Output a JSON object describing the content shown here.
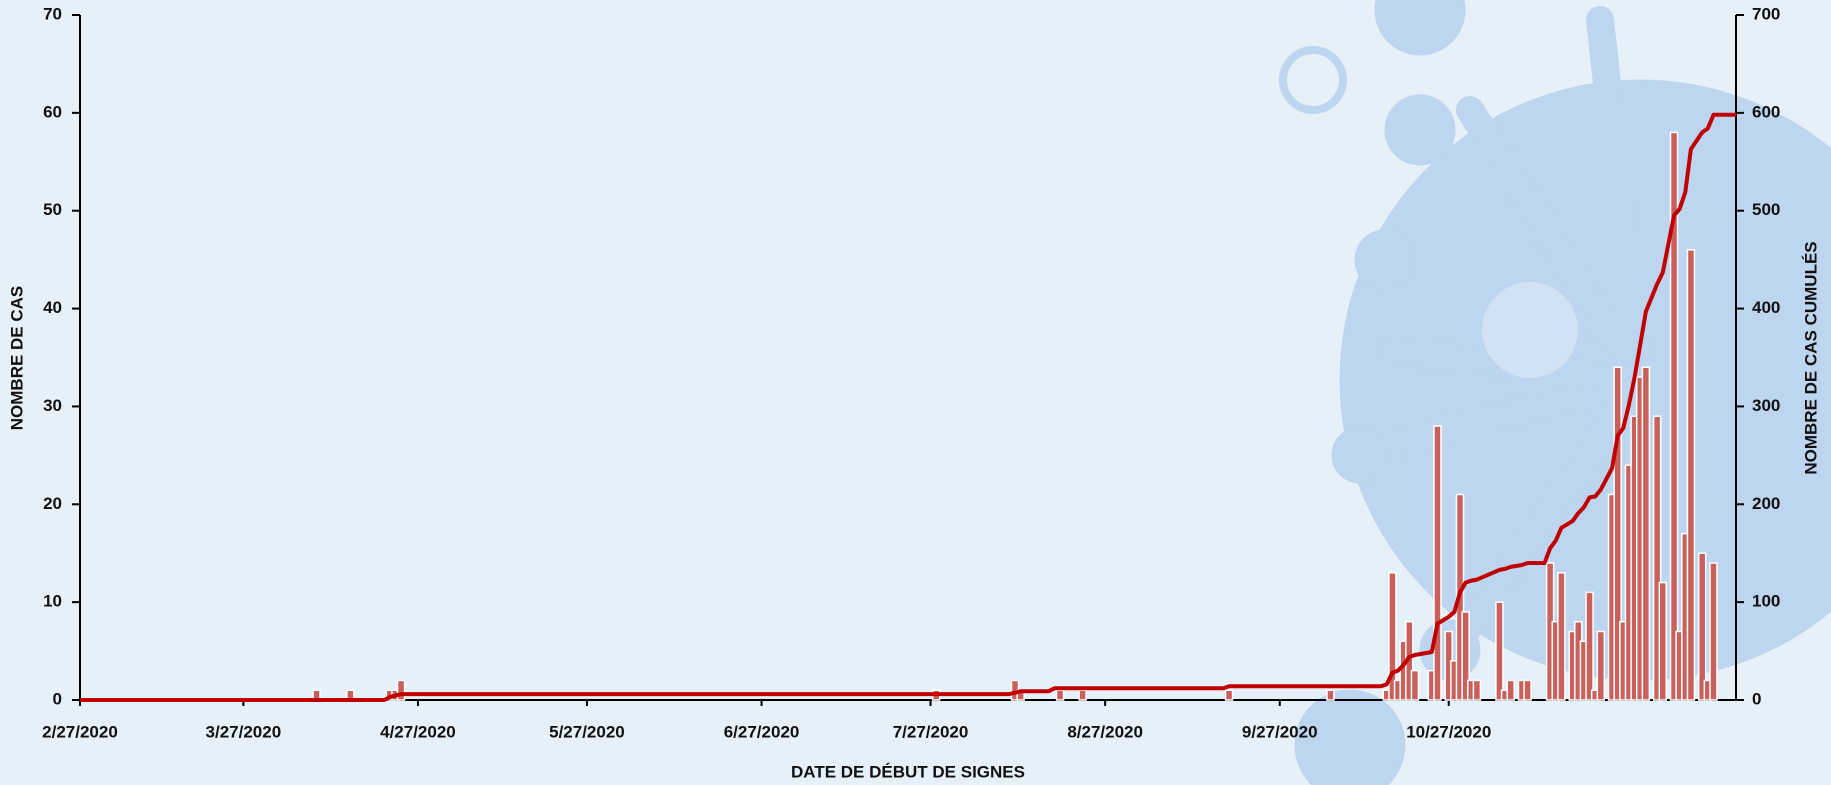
{
  "chart_data": {
    "type": "bar",
    "xlabel": "DATE DE DÉBUT DE SIGNES",
    "ylabel": "NOMBRE DE CAS",
    "y2label": "NOMBRE DE CAS CUMULÉS",
    "xlim": [
      "2/27/2020",
      "12/17/2020"
    ],
    "xticks": [
      "2/27/2020",
      "3/27/2020",
      "4/27/2020",
      "5/27/2020",
      "6/27/2020",
      "7/27/2020",
      "8/27/2020",
      "9/27/2020",
      "10/27/2020"
    ],
    "ylim": [
      0,
      70
    ],
    "yticks": [
      0,
      10,
      20,
      30,
      40,
      50,
      60,
      70
    ],
    "y2lim": [
      0,
      700
    ],
    "y2ticks": [
      0,
      100,
      200,
      300,
      400,
      500,
      600,
      700
    ],
    "bars": {
      "color": "#c9605c",
      "x": [
        "4/9/2020",
        "4/15/2020",
        "4/22/2020",
        "4/23/2020",
        "4/24/2020",
        "7/28/2020",
        "8/11/2020",
        "8/12/2020",
        "8/19/2020",
        "8/23/2020",
        "9/18/2020",
        "10/6/2020",
        "10/16/2020",
        "10/17/2020",
        "10/18/2020",
        "10/19/2020",
        "10/20/2020",
        "10/21/2020",
        "10/24/2020",
        "10/25/2020",
        "10/27/2020",
        "10/28/2020",
        "10/29/2020",
        "10/30/2020",
        "10/31/2020",
        "11/1/2020",
        "11/5/2020",
        "11/6/2020",
        "11/7/2020",
        "11/9/2020",
        "11/10/2020",
        "11/14/2020",
        "11/15/2020",
        "11/16/2020",
        "11/18/2020",
        "11/19/2020",
        "11/20/2020",
        "11/21/2020",
        "11/22/2020",
        "11/23/2020",
        "11/25/2020",
        "11/26/2020",
        "11/27/2020",
        "11/28/2020",
        "11/29/2020",
        "11/30/2020",
        "12/1/2020",
        "12/3/2020",
        "12/4/2020",
        "12/6/2020",
        "12/7/2020",
        "12/8/2020",
        "12/9/2020",
        "12/11/2020",
        "12/12/2020",
        "12/13/2020"
      ],
      "values": [
        1,
        1,
        1,
        1,
        2,
        1,
        2,
        1,
        1,
        1,
        1,
        1,
        1,
        13,
        2,
        6,
        8,
        3,
        3,
        28,
        7,
        4,
        21,
        9,
        2,
        2,
        10,
        1,
        2,
        2,
        2,
        14,
        8,
        13,
        7,
        8,
        6,
        11,
        1,
        7,
        21,
        34,
        8,
        24,
        29,
        33,
        34,
        29,
        12,
        58,
        7,
        17,
        46,
        15,
        2,
        14
      ]
    },
    "line": {
      "color": "#c00000",
      "axis": "y2",
      "x": [
        "2/27/2020",
        "4/21/2020",
        "4/22/2020",
        "4/24/2020",
        "8/10/2020",
        "8/12/2020",
        "8/17/2020",
        "8/18/2020",
        "9/17/2020",
        "9/18/2020",
        "10/15/2020",
        "10/16/2020",
        "10/17/2020",
        "10/18/2020",
        "10/19/2020",
        "10/20/2020",
        "10/21/2020",
        "10/24/2020",
        "10/25/2020",
        "10/27/2020",
        "10/28/2020",
        "10/29/2020",
        "10/30/2020",
        "10/31/2020",
        "11/1/2020",
        "11/5/2020",
        "11/6/2020",
        "11/7/2020",
        "11/9/2020",
        "11/10/2020",
        "11/13/2020",
        "11/14/2020",
        "11/15/2020",
        "11/16/2020",
        "11/18/2020",
        "11/19/2020",
        "11/20/2020",
        "11/21/2020",
        "11/22/2020",
        "11/23/2020",
        "11/25/2020",
        "11/26/2020",
        "11/27/2020",
        "11/28/2020",
        "11/29/2020",
        "11/30/2020",
        "12/1/2020",
        "12/3/2020",
        "12/4/2020",
        "12/6/2020",
        "12/7/2020",
        "12/8/2020",
        "12/9/2020",
        "12/11/2020",
        "12/12/2020",
        "12/13/2020",
        "12/17/2020"
      ],
      "values": [
        0,
        0,
        3,
        6,
        6,
        9,
        9,
        12,
        12,
        14,
        14,
        16,
        28,
        30,
        36,
        44,
        46,
        49,
        78,
        85,
        90,
        110,
        120,
        122,
        123,
        133,
        134,
        136,
        138,
        140,
        140,
        155,
        163,
        176,
        183,
        191,
        197,
        207,
        208,
        215,
        237,
        270,
        278,
        302,
        330,
        363,
        397,
        425,
        437,
        495,
        502,
        519,
        563,
        580,
        584,
        598,
        598
      ]
    }
  }
}
